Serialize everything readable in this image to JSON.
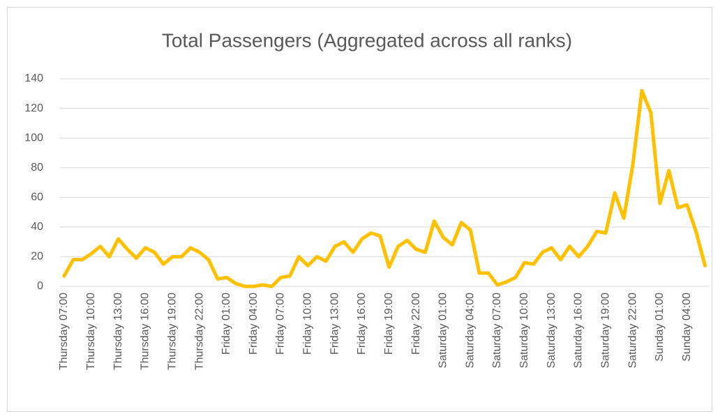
{
  "chart_data": {
    "type": "line",
    "title": "Total Passengers (Aggregated across all ranks)",
    "categories": [
      "Thursday 07:00",
      null,
      null,
      "Thursday 10:00",
      null,
      null,
      "Thursday 13:00",
      null,
      null,
      "Thursday 16:00",
      null,
      null,
      "Thursday 19:00",
      null,
      null,
      "Thursday 22:00",
      null,
      null,
      "Friday 01:00",
      null,
      null,
      "Friday 04:00",
      null,
      null,
      "Friday 07:00",
      null,
      null,
      "Friday 10:00",
      null,
      null,
      "Friday 13:00",
      null,
      null,
      "Friday 16:00",
      null,
      null,
      "Friday 19:00",
      null,
      null,
      "Friday 22:00",
      null,
      null,
      "Saturday 01:00",
      null,
      null,
      "Saturday 04:00",
      null,
      null,
      "Saturday 07:00",
      null,
      null,
      "Saturday 10:00",
      null,
      null,
      "Saturday 13:00",
      null,
      null,
      "Saturday 16:00",
      null,
      null,
      "Saturday 19:00",
      null,
      null,
      "Saturday 22:00",
      null,
      null,
      "Sunday 01:00",
      null,
      null,
      "Sunday 04:00",
      null,
      null
    ],
    "values": [
      7,
      18,
      18,
      22,
      27,
      20,
      32,
      25,
      19,
      26,
      23,
      15,
      20,
      20,
      26,
      23,
      18,
      5,
      6,
      2,
      0,
      0,
      1,
      0,
      6,
      7,
      20,
      14,
      20,
      17,
      27,
      30,
      23,
      32,
      36,
      34,
      13,
      27,
      31,
      25,
      23,
      44,
      33,
      28,
      43,
      38,
      9,
      9,
      1,
      3,
      6,
      16,
      15,
      23,
      26,
      18,
      27,
      20,
      27,
      37,
      36,
      63,
      46,
      82,
      132,
      117,
      56,
      78,
      53,
      55,
      37,
      14
    ],
    "color": "#ffc000",
    "ylim": [
      0,
      140
    ],
    "yticks": [
      0,
      20,
      40,
      60,
      80,
      100,
      120,
      140
    ],
    "grid": true
  }
}
